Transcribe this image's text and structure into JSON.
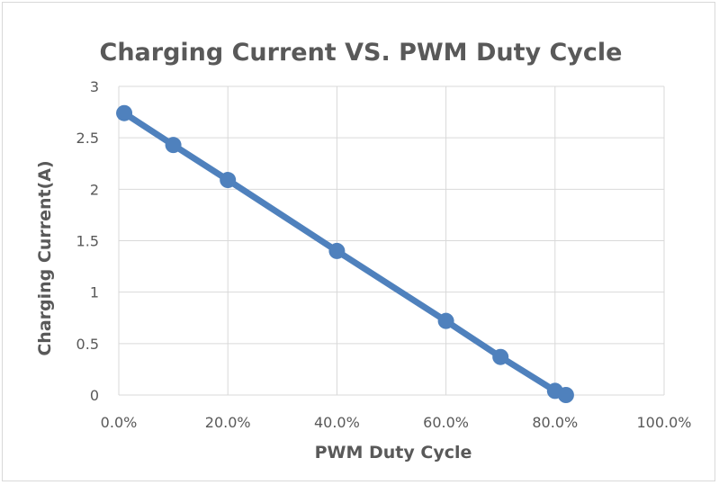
{
  "chart_data": {
    "type": "scatter",
    "title": "Charging Current VS. PWM Duty Cycle",
    "xlabel": "PWM Duty Cycle",
    "ylabel": "Charging Current(A)",
    "xlim": [
      0,
      1
    ],
    "ylim": [
      0,
      3
    ],
    "x_ticks": [
      0,
      0.2,
      0.4,
      0.6,
      0.8,
      1.0
    ],
    "x_tick_labels": [
      "0.0%",
      "20.0%",
      "40.0%",
      "60.0%",
      "80.0%",
      "100.0%"
    ],
    "y_ticks": [
      0,
      0.5,
      1,
      1.5,
      2,
      2.5,
      3
    ],
    "y_tick_labels": [
      "0",
      "0.5",
      "1",
      "1.5",
      "2",
      "2.5",
      "3"
    ],
    "grid": true,
    "legend": "none",
    "series": [
      {
        "line": true,
        "markers": true,
        "color": "#4f81bd",
        "x": [
          0.01,
          0.1,
          0.2,
          0.4,
          0.6,
          0.7,
          0.8,
          0.82
        ],
        "y": [
          2.74,
          2.43,
          2.09,
          1.4,
          0.72,
          0.37,
          0.04,
          0.0
        ]
      }
    ]
  }
}
